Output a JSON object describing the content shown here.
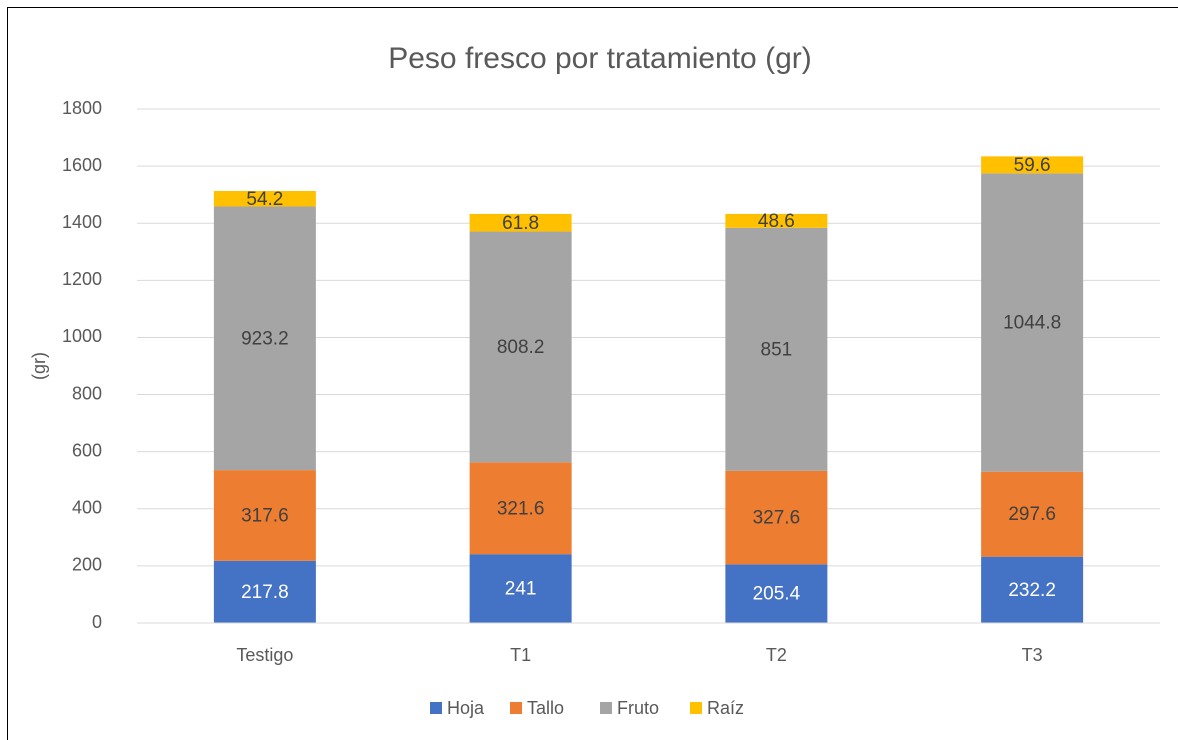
{
  "chart_data": {
    "type": "stacked_bar",
    "title": "Peso fresco por tratamiento (gr)",
    "ylabel": "(gr)",
    "categories": [
      "Testigo",
      "T1",
      "T2",
      "T3"
    ],
    "series": [
      {
        "name": "Hoja",
        "color": "#4472c4",
        "values": [
          217.8,
          241,
          205.4,
          232.2
        ]
      },
      {
        "name": "Tallo",
        "color": "#ed7d31",
        "values": [
          317.6,
          321.6,
          327.6,
          297.6
        ]
      },
      {
        "name": "Fruto",
        "color": "#a5a5a5",
        "values": [
          923.2,
          808.2,
          851,
          1044.8
        ]
      },
      {
        "name": "Raíz",
        "color": "#ffc000",
        "values": [
          54.2,
          61.8,
          48.6,
          59.6
        ]
      }
    ],
    "ylim": [
      0,
      1800
    ],
    "yticks": [
      0,
      200,
      400,
      600,
      800,
      1000,
      1200,
      1400,
      1600,
      1800
    ],
    "grid": true,
    "legend": "bottom"
  }
}
